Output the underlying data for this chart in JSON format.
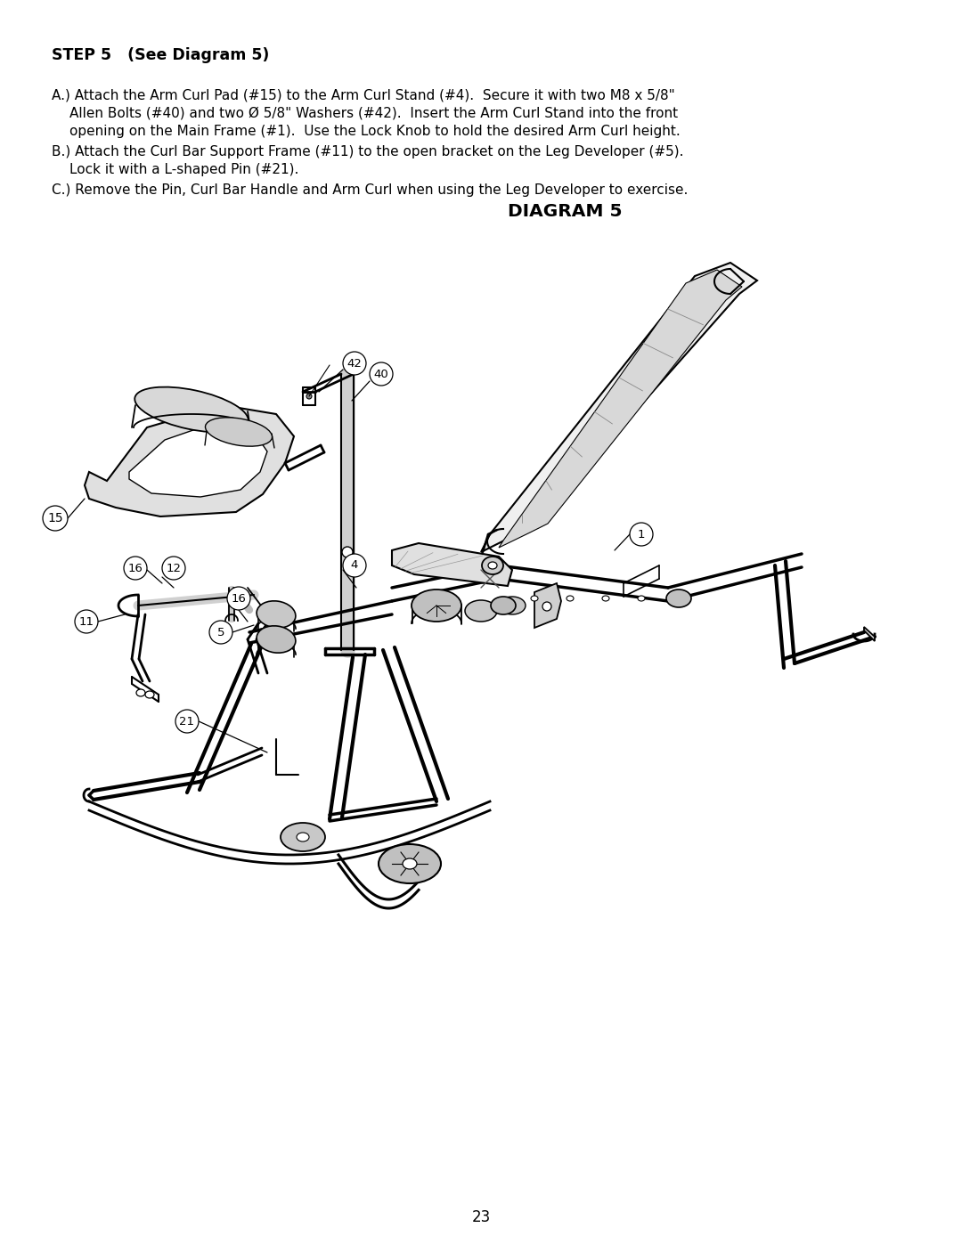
{
  "bg_color": "#ffffff",
  "page_number": "23",
  "step_title": "STEP 5   (See Diagram 5)",
  "diagram_title": "DIAGRAM 5",
  "text_line1": "A.) Attach the Arm Curl Pad (#15) to the Arm Curl Stand (#4).  Secure it with two M8 x 5/8\"",
  "text_line2": "    Allen Bolts (#40) and two Ø 5/8\" Washers (#42).  Insert the Arm Curl Stand into the front",
  "text_line3": "    opening on the Main Frame (#1).  Use the Lock Knob to hold the desired Arm Curl height.",
  "text_line4": "B.) Attach the Curl Bar Support Frame (#11) to the open bracket on the Leg Developer (#5).",
  "text_line5": "    Lock it with a L-shaped Pin (#21).",
  "text_line6": "C.) Remove the Pin, Curl Bar Handle and Arm Curl when using the Leg Developer to exercise.",
  "label_fontsize": 9.0,
  "label_circle_r": 0.013,
  "lw_thin": 0.8,
  "lw_med": 1.4,
  "lw_thick": 2.2,
  "lw_xthick": 3.0
}
